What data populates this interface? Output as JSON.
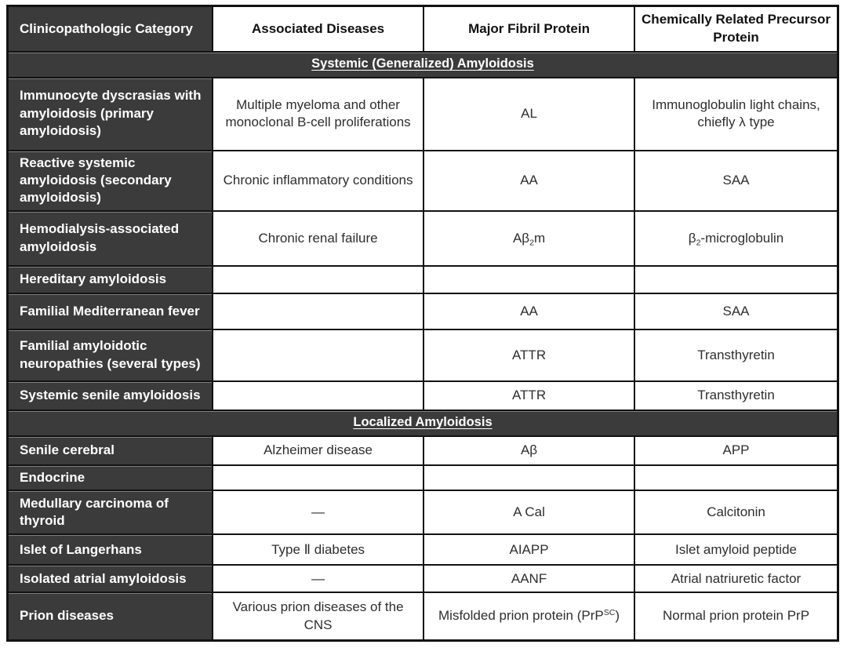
{
  "colors": {
    "dark_cell": "#3b3b3b",
    "border": "#121212",
    "light_text": "#ffffff",
    "body_text": "#2e2e2e"
  },
  "table": {
    "headers": [
      "Clinicopathologic Category",
      "Associated Diseases",
      "Major Fibril Protein",
      "Chemically Related Precursor Protein"
    ],
    "sections": [
      {
        "title": "Systemic (Generalized) Amyloidosis",
        "rows": [
          {
            "category": "Immunocyte dyscrasias with amyloidosis (primary amyloidosis)",
            "disease": "Multiple myeloma and other monoclonal B-cell proliferations",
            "fibril": "AL",
            "precursor": "Immunoglobulin light chains, chiefly λ type"
          },
          {
            "category": "Reactive systemic amyloidosis (secondary amyloidosis)",
            "disease": "Chronic inflammatory conditions",
            "fibril": "AA",
            "precursor": "SAA"
          },
          {
            "category": "Hemodialysis-associated amyloidosis",
            "disease": "Chronic renal failure",
            "fibril": "Aβ_{2}m",
            "precursor": "β_{2}-microglobulin"
          },
          {
            "category": "Hereditary amyloidosis",
            "disease": "",
            "fibril": "",
            "precursor": ""
          },
          {
            "category": "Familial Mediterranean fever",
            "disease": "",
            "fibril": "AA",
            "precursor": "SAA"
          },
          {
            "category": "Familial amyloidotic neuropathies (several types)",
            "disease": "",
            "fibril": "ATTR",
            "precursor": "Transthyretin"
          },
          {
            "category": "Systemic senile amyloidosis",
            "disease": "",
            "fibril": "ATTR",
            "precursor": "Transthyretin"
          }
        ]
      },
      {
        "title": "Localized Amyloidosis",
        "rows": [
          {
            "category": "Senile cerebral",
            "disease": "Alzheimer disease",
            "fibril": "Aβ",
            "precursor": "APP"
          },
          {
            "category": "Endocrine",
            "disease": "",
            "fibril": "",
            "precursor": ""
          },
          {
            "category": "Medullary carcinoma of thyroid",
            "disease": "—",
            "fibril": "A Cal",
            "precursor": "Calcitonin"
          },
          {
            "category": "Islet of Langerhans",
            "disease": "Type Ⅱ diabetes",
            "fibril": "AIAPP",
            "precursor": "Islet amyloid peptide"
          },
          {
            "category": "Isolated atrial amyloidosis",
            "disease": "—",
            "fibril": "AANF",
            "precursor": "Atrial natriuretic factor"
          },
          {
            "category": "Prion diseases",
            "disease": "Various prion diseases of the CNS",
            "fibril": "Misfolded prion protein (PrP^{SC})",
            "precursor": "Normal prion protein PrP"
          }
        ]
      }
    ]
  }
}
